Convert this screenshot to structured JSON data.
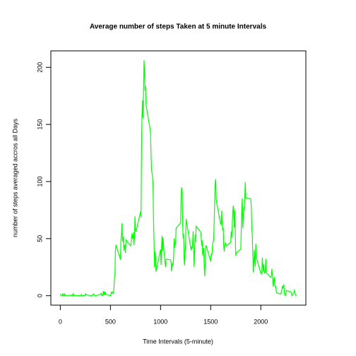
{
  "chart_data": {
    "type": "line",
    "title": "Average number of steps Taken at 5 minute Intervals",
    "xlabel": "Time Intervals (5-minute)",
    "ylabel": "number of steps averaged accros all Days",
    "color": "#00ff00",
    "xlim": [
      -94.2,
      2449.2
    ],
    "ylim": [
      -8.25,
      214.42
    ],
    "xticks": [
      0,
      500,
      1000,
      1500,
      2000
    ],
    "yticks": [
      0,
      50,
      100,
      150,
      200
    ],
    "x": [
      0,
      5,
      10,
      15,
      20,
      25,
      30,
      35,
      40,
      45,
      50,
      55,
      100,
      105,
      110,
      115,
      120,
      125,
      130,
      135,
      140,
      145,
      150,
      155,
      200,
      205,
      210,
      215,
      220,
      225,
      230,
      235,
      240,
      245,
      250,
      255,
      300,
      305,
      310,
      315,
      320,
      325,
      330,
      335,
      340,
      345,
      350,
      355,
      400,
      405,
      410,
      415,
      420,
      425,
      430,
      435,
      440,
      445,
      450,
      455,
      500,
      505,
      510,
      515,
      520,
      525,
      530,
      535,
      540,
      545,
      550,
      555,
      600,
      605,
      610,
      615,
      620,
      625,
      630,
      635,
      640,
      645,
      650,
      655,
      700,
      705,
      710,
      715,
      720,
      725,
      730,
      735,
      740,
      745,
      750,
      755,
      800,
      805,
      810,
      815,
      820,
      825,
      830,
      835,
      840,
      845,
      850,
      855,
      900,
      905,
      910,
      915,
      920,
      925,
      930,
      935,
      940,
      945,
      950,
      955,
      1000,
      1005,
      1010,
      1015,
      1020,
      1025,
      1030,
      1035,
      1040,
      1045,
      1050,
      1055,
      1100,
      1105,
      1110,
      1115,
      1120,
      1125,
      1130,
      1135,
      1140,
      1145,
      1150,
      1155,
      1200,
      1205,
      1210,
      1215,
      1220,
      1225,
      1230,
      1235,
      1240,
      1245,
      1250,
      1255,
      1300,
      1305,
      1310,
      1315,
      1320,
      1325,
      1330,
      1335,
      1340,
      1345,
      1350,
      1355,
      1400,
      1405,
      1410,
      1415,
      1420,
      1425,
      1430,
      1435,
      1440,
      1445,
      1450,
      1455,
      1500,
      1505,
      1510,
      1515,
      1520,
      1525,
      1530,
      1535,
      1540,
      1545,
      1550,
      1555,
      1600,
      1605,
      1610,
      1615,
      1620,
      1625,
      1630,
      1635,
      1640,
      1645,
      1650,
      1655,
      1700,
      1705,
      1710,
      1715,
      1720,
      1725,
      1730,
      1735,
      1740,
      1745,
      1750,
      1755,
      1800,
      1805,
      1810,
      1815,
      1820,
      1825,
      1830,
      1835,
      1840,
      1845,
      1850,
      1855,
      1900,
      1905,
      1910,
      1915,
      1920,
      1925,
      1930,
      1935,
      1940,
      1945,
      1950,
      1955,
      2000,
      2005,
      2010,
      2015,
      2020,
      2025,
      2030,
      2035,
      2040,
      2045,
      2050,
      2055,
      2100,
      2105,
      2110,
      2115,
      2120,
      2125,
      2130,
      2135,
      2140,
      2145,
      2150,
      2155,
      2200,
      2205,
      2210,
      2215,
      2220,
      2225,
      2230,
      2235,
      2240,
      2245,
      2250,
      2255,
      2300,
      2305,
      2310,
      2315,
      2320,
      2325,
      2330,
      2335,
      2340,
      2345,
      2350,
      2355
    ],
    "values": [
      1.72,
      0.34,
      0.13,
      0.15,
      0.08,
      2.09,
      0.53,
      0.87,
      0,
      1.47,
      0.3,
      0.13,
      0.32,
      0.68,
      0.15,
      0.34,
      0,
      1.11,
      1.83,
      0.17,
      0.17,
      0.38,
      0.26,
      0,
      0,
      0,
      1.13,
      0,
      0,
      0.13,
      0,
      0.23,
      0,
      0,
      1.55,
      0.94,
      0,
      0,
      0,
      0,
      0.21,
      0.62,
      1.62,
      0.58,
      0.49,
      0.08,
      0,
      0,
      1.19,
      0.94,
      2.57,
      0,
      0.34,
      0.36,
      4.11,
      0.66,
      3.49,
      0.83,
      3.11,
      1.11,
      0,
      1.57,
      3,
      2.25,
      3.32,
      2.96,
      2.09,
      6.06,
      16.02,
      18.34,
      39.45,
      44.49,
      31.49,
      49.26,
      53.77,
      63.45,
      49.96,
      47.08,
      52.15,
      39.34,
      44.02,
      44.17,
      37.36,
      49.04,
      43.81,
      44.38,
      50.51,
      54.51,
      49.92,
      50.98,
      55.68,
      44.32,
      52.26,
      69.55,
      57.85,
      56.15,
      73.38,
      68.21,
      129.43,
      157.53,
      171.15,
      155.4,
      177.3,
      206.17,
      195.92,
      179.57,
      183.4,
      167.02,
      143.45,
      124.04,
      109.11,
      108.11,
      103.72,
      95.96,
      66.21,
      45.23,
      24.79,
      38.75,
      34.98,
      21.06,
      40.57,
      26.98,
      42.42,
      52.66,
      38.92,
      50.79,
      44.28,
      37.42,
      34.7,
      28.34,
      25.09,
      31.94,
      31.36,
      29.68,
      21.32,
      25.55,
      28.38,
      26.47,
      33.43,
      49.98,
      42.04,
      44.6,
      46.04,
      59.19,
      63.87,
      87.7,
      94.85,
      92.77,
      63.4,
      50.17,
      54.47,
      32.42,
      26.53,
      37.74,
      45.06,
      67.28,
      42.34,
      39.89,
      43.26,
      40.98,
      46.25,
      56.43,
      42.75,
      25.13,
      39.96,
      53.55,
      47.32,
      60.81,
      55.75,
      51.96,
      43.58,
      48.7,
      35.47,
      37.55,
      41.85,
      27.51,
      17.11,
      26.08,
      43.62,
      43.77,
      30.02,
      36.08,
      35.49,
      38.85,
      45.96,
      47.75,
      48.13,
      65.32,
      82.91,
      98.66,
      102.11,
      83.96,
      62.13,
      64.13,
      74.55,
      63.17,
      56.91,
      59.77,
      43.87,
      38.57,
      44.66,
      45.45,
      46.21,
      43.68,
      46.62,
      56.3,
      50.72,
      61.23,
      72.72,
      78.94,
      68.94,
      59.66,
      75.09,
      56.51,
      34.77,
      37.45,
      40.68,
      58.02,
      74.7,
      85.32,
      59.26,
      67.77,
      77.7,
      74.25,
      85.34,
      99.45,
      86.58,
      85.6,
      84.87,
      77.83,
      58.04,
      53.36,
      36.32,
      20.72,
      27.4,
      40.02,
      30.21,
      25.55,
      45.66,
      33.53,
      19.62,
      19.02,
      19.34,
      33.34,
      26.81,
      21.17,
      27.3,
      21.34,
      19.55,
      21.32,
      32.3,
      20.15,
      15.94,
      17.23,
      23.45,
      19.25,
      12.45,
      8.02,
      14.66,
      16.3,
      8.68,
      7.79,
      8.13,
      2.62,
      1.45,
      3.68,
      4.81,
      8.51,
      7.08,
      8.7,
      9.75,
      2.21,
      0.32,
      0.11,
      1.6,
      4.6,
      3.3,
      2.85,
      0,
      0.83,
      0.96,
      1.58,
      2.6,
      4.7,
      3.3,
      0.64,
      0.23,
      1.08
    ]
  }
}
